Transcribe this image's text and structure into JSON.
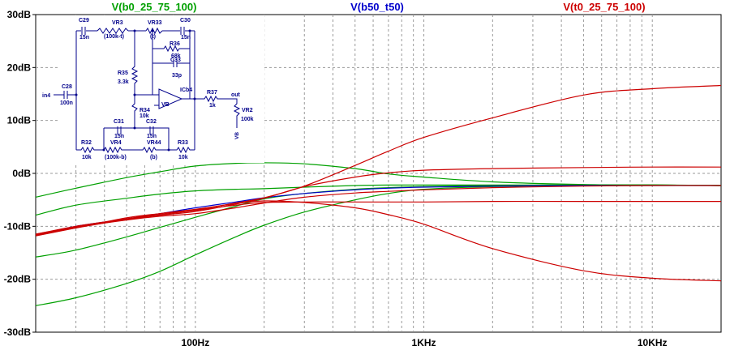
{
  "chart_data": {
    "type": "line",
    "x_scale": "log",
    "x_range_hz": [
      20,
      20000
    ],
    "ylim": [
      -30,
      30
    ],
    "y_unit": "dB",
    "y_ticks": [
      {
        "value": 30,
        "label": "30dB"
      },
      {
        "value": 20,
        "label": "20dB"
      },
      {
        "value": 10,
        "label": "10dB"
      },
      {
        "value": 0,
        "label": "0dB"
      },
      {
        "value": -10,
        "label": "-10dB"
      },
      {
        "value": -20,
        "label": "-20dB"
      },
      {
        "value": -30,
        "label": "-30dB"
      }
    ],
    "x_ticks": [
      {
        "value": 100,
        "label": "100Hz"
      },
      {
        "value": 1000,
        "label": "1KHz"
      },
      {
        "value": 10000,
        "label": "10KHz"
      }
    ],
    "grid": true,
    "legend_position": "top",
    "series": [
      {
        "name": "V(b0_25_75_100)",
        "color": "#00a000",
        "curves": [
          {
            "x": [
              20,
              30,
              50,
              70,
              100,
              150,
              200,
              300,
              500,
              700,
              1000,
              2000,
              5000,
              10000,
              20000
            ],
            "y": [
              -4.5,
              -2.8,
              -0.8,
              0.3,
              1.4,
              1.9,
              2.0,
              1.8,
              0.9,
              -0.1,
              -0.7,
              -1.6,
              -2.1,
              -2.2,
              -2.3
            ]
          },
          {
            "x": [
              20,
              30,
              50,
              70,
              100,
              150,
              200,
              300,
              500,
              700,
              1000,
              2000,
              5000,
              10000,
              20000
            ],
            "y": [
              -7.9,
              -6.0,
              -4.7,
              -3.9,
              -3.3,
              -3.0,
              -2.9,
              -2.6,
              -2.3,
              -2.2,
              -2.2,
              -2.2,
              -2.2,
              -2.2,
              -2.3
            ]
          },
          {
            "x": [
              20,
              30,
              50,
              70,
              100,
              150,
              200,
              300,
              500,
              700,
              1000,
              2000,
              5000,
              10000,
              20000
            ],
            "y": [
              -15.8,
              -14.5,
              -12.0,
              -10.2,
              -8.3,
              -6.2,
              -4.8,
              -3.8,
              -3.0,
              -2.7,
              -2.5,
              -2.3,
              -2.2,
              -2.2,
              -2.3
            ]
          },
          {
            "x": [
              20,
              30,
              50,
              70,
              100,
              150,
              200,
              300,
              500,
              700,
              1000,
              2000,
              5000,
              10000,
              20000
            ],
            "y": [
              -25.0,
              -23.5,
              -20.8,
              -18.5,
              -15.4,
              -12.0,
              -9.8,
              -7.3,
              -5.0,
              -3.8,
              -3.0,
              -2.5,
              -2.3,
              -2.2,
              -2.3
            ]
          }
        ]
      },
      {
        "name": "V(b50_t50)",
        "color": "#0000cc",
        "curves": [
          {
            "x": [
              20,
              30,
              50,
              70,
              100,
              150,
              200,
              300,
              500,
              700,
              1000,
              2000,
              5000,
              10000,
              20000
            ],
            "y": [
              -11.6,
              -10.0,
              -8.6,
              -7.6,
              -6.5,
              -5.4,
              -4.6,
              -3.8,
              -3.1,
              -2.8,
              -2.6,
              -2.4,
              -2.3,
              -2.3,
              -2.3
            ]
          }
        ]
      },
      {
        "name": "V(t0_25_75_100)",
        "color": "#cc0000",
        "curves": [
          {
            "x": [
              20,
              30,
              50,
              70,
              100,
              150,
              200,
              300,
              500,
              700,
              1000,
              2000,
              5000,
              10000,
              20000
            ],
            "y": [
              -11.8,
              -10.3,
              -8.4,
              -7.6,
              -6.9,
              -5.6,
              -4.6,
              -2.4,
              1.5,
              4.2,
              6.8,
              10.5,
              14.8,
              16.0,
              16.6
            ]
          },
          {
            "x": [
              20,
              30,
              50,
              70,
              100,
              150,
              200,
              300,
              500,
              700,
              1000,
              2000,
              5000,
              10000,
              20000
            ],
            "y": [
              -11.7,
              -10.3,
              -8.7,
              -7.9,
              -7.2,
              -5.8,
              -4.7,
              -2.5,
              -0.7,
              0.1,
              0.6,
              0.9,
              1.1,
              1.2,
              1.2
            ]
          },
          {
            "x": [
              20,
              30,
              50,
              70,
              100,
              150,
              200,
              300,
              500,
              700,
              1000,
              2000,
              5000,
              10000,
              20000
            ],
            "y": [
              -11.6,
              -10.2,
              -8.8,
              -8.1,
              -7.6,
              -6.5,
              -5.6,
              -4.5,
              -3.7,
              -3.4,
              -3.1,
              -2.7,
              -2.4,
              -2.3,
              -2.3
            ]
          },
          {
            "x": [
              20,
              30,
              50,
              70,
              100,
              150,
              200,
              300,
              500,
              700,
              1000,
              2000,
              5000,
              10000,
              20000
            ],
            "y": [
              -11.5,
              -10.0,
              -8.6,
              -7.8,
              -7.0,
              -6.0,
              -5.5,
              -5.4,
              -5.4,
              -5.4,
              -5.4,
              -5.3,
              -5.3,
              -5.3,
              -5.3
            ]
          },
          {
            "x": [
              20,
              30,
              50,
              70,
              100,
              150,
              200,
              300,
              500,
              700,
              1000,
              2000,
              5000,
              10000,
              20000
            ],
            "y": [
              -11.5,
              -10.1,
              -8.6,
              -7.6,
              -6.8,
              -5.7,
              -5.2,
              -5.5,
              -6.5,
              -7.8,
              -9.6,
              -14.2,
              -18.4,
              -19.8,
              -20.3
            ]
          }
        ]
      }
    ]
  },
  "schematic": {
    "components": {
      "c29": "C29",
      "c29v": "15n",
      "vr3": "VR3",
      "vr3v": "(100k-t)",
      "vr33": "VR33",
      "vr33v": "(t)",
      "c30": "C30",
      "c30v": "15n",
      "r36": "R36",
      "r36v": "68k",
      "c33": "C33",
      "c33v": "33p",
      "r35": "R35",
      "r35v": "3.3k",
      "c28": "C28",
      "c28v": "100n",
      "in": "in4",
      "ic": "ICb4",
      "vb": "VB",
      "r37": "R37",
      "r37v": "1k",
      "out": "out",
      "vr2": "VR2",
      "vr2v": "100k",
      "vb2": "VB",
      "r34": "R34",
      "r34v": "10k",
      "c31": "C31",
      "c31v": "15n",
      "c32": "C32",
      "c32v": "15n",
      "vr4": "VR4",
      "vr4v": "(100k-b)",
      "vr44": "VR44",
      "vr44v": "(b)",
      "r32": "R32",
      "r32v": "10k",
      "r33": "R33",
      "r33v": "10k"
    }
  }
}
